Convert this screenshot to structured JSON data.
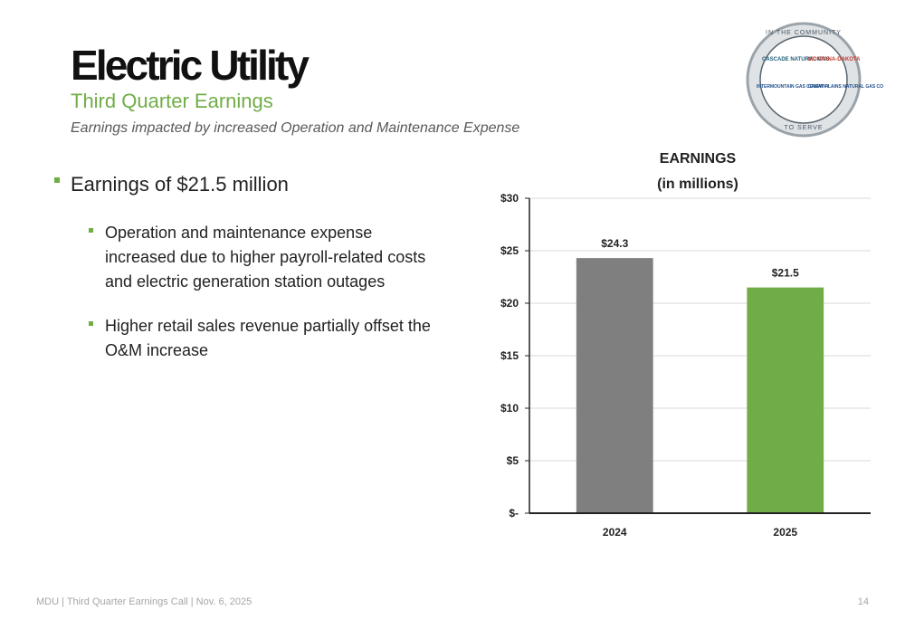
{
  "header": {
    "title": "Electric Utility",
    "subtitle": "Third Quarter Earnings",
    "tagline": "Earnings impacted by increased Operation and Maintenance Expense"
  },
  "logo": {
    "ring_top": "IN THE COMMUNITY",
    "ring_bottom": "TO SERVE",
    "brands": [
      "CASCADE NATURAL GAS",
      "MONTANA-DAKOTA",
      "INTERMOUNTAIN GAS COMPANY",
      "GREAT PLAINS NATURAL GAS CO"
    ]
  },
  "bullets": {
    "main": "Earnings of $21.5 million",
    "sub": [
      [
        "Operation and maintenance expense",
        "increased due to higher payroll-related costs",
        "and electric generation station outages"
      ],
      [
        "Higher retail sales revenue partially offset the",
        "O&M increase"
      ]
    ]
  },
  "chart_data": {
    "type": "bar",
    "title": "EARNINGS",
    "subtitle": "(in millions)",
    "categories": [
      "2024",
      "2025"
    ],
    "values": [
      24.3,
      21.5
    ],
    "value_labels": [
      "$24.3",
      "$21.5"
    ],
    "colors": [
      "#7f7f7f",
      "#70ad47"
    ],
    "ylim": [
      0,
      30
    ],
    "yticks": [
      {
        "value": 0,
        "label": "$-"
      },
      {
        "value": 5,
        "label": "$5"
      },
      {
        "value": 10,
        "label": "$10"
      },
      {
        "value": 15,
        "label": "$15"
      },
      {
        "value": 20,
        "label": "$20"
      },
      {
        "value": 25,
        "label": "$25"
      },
      {
        "value": 30,
        "label": "$30"
      }
    ],
    "grid": true
  },
  "footer": {
    "left": "MDU | Third Quarter Earnings Call | Nov. 6, 2025",
    "page": "14"
  }
}
